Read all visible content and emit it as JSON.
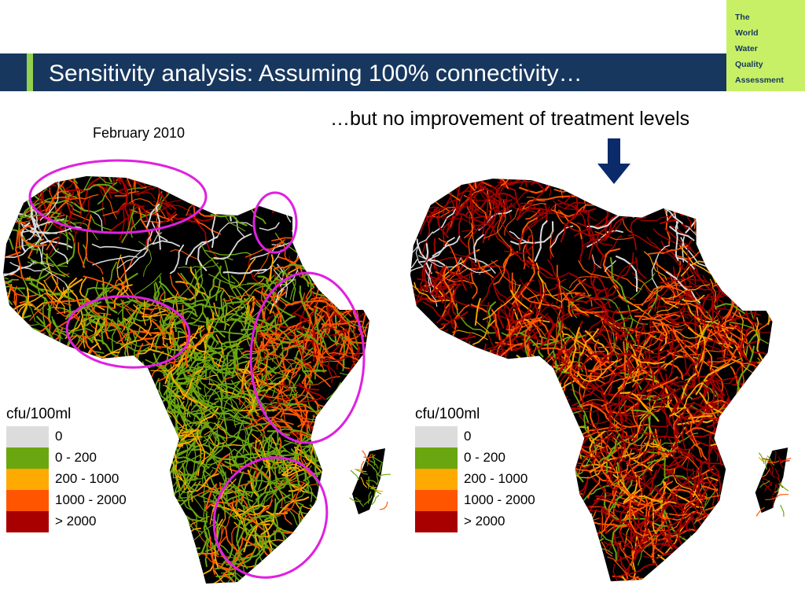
{
  "header": {
    "title": "Sensitivity analysis: Assuming 100% connectivity…",
    "logo_lines": [
      "The",
      "World",
      "Water",
      "Quality",
      "Assessment"
    ]
  },
  "subtitles": {
    "left": "February 2010",
    "right": "…but no improvement of treatment levels"
  },
  "legend": {
    "title": "cfu/100ml",
    "items": [
      {
        "label": "0",
        "color": "#dcdcdc"
      },
      {
        "label": "0 - 200",
        "color": "#6aa610"
      },
      {
        "label": "200 - 1000",
        "color": "#ffaa00"
      },
      {
        "label": "1000 - 2000",
        "color": "#ff5500"
      },
      {
        "label": "> 2000",
        "color": "#a80000"
      }
    ]
  },
  "colors": {
    "title_bar": "#17375e",
    "title_accent": "#92d050",
    "logo_bg": "#c8f066",
    "highlight_ellipse": "#e020e0",
    "land": "#000000",
    "arrow": "#0a2a6a"
  },
  "maps": {
    "left": {
      "dominant_class": "0 - 200",
      "highlighted_regions": 5
    },
    "right": {
      "dominant_class": "> 2000"
    }
  }
}
